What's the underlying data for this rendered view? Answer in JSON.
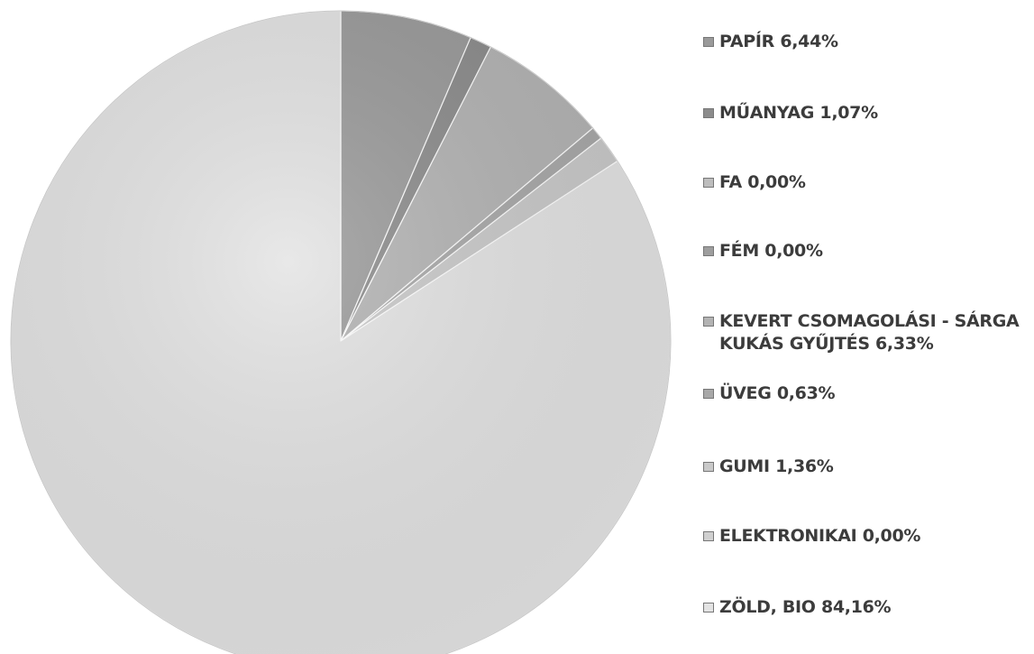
{
  "chart_data": {
    "type": "pie",
    "title": "",
    "start_angle_deg": 0,
    "direction": "clockwise",
    "legend_position": "right",
    "slices": [
      {
        "label": "PAPÍR 6,44%",
        "value": 6.44,
        "color": "#9a9a9a"
      },
      {
        "label": "MŰANYAG 1,07%",
        "value": 1.07,
        "color": "#8c8c8c"
      },
      {
        "label": "FA 0,00%",
        "value": 0.0,
        "color": "#bdbdbd"
      },
      {
        "label": "FÉM 0,00%",
        "value": 0.0,
        "color": "#9e9e9e"
      },
      {
        "label": "KEVERT CSOMAGOLÁSI - SÁRGA\nKUKÁS GYŰJTÉS 6,33%",
        "value": 6.33,
        "color": "#b3b3b3"
      },
      {
        "label": "ÜVEG 0,63%",
        "value": 0.63,
        "color": "#a8a8a8"
      },
      {
        "label": "GUMI 1,36%",
        "value": 1.36,
        "color": "#c9c9c9"
      },
      {
        "label": "ELEKTRONIKAI 0,00%",
        "value": 0.0,
        "color": "#d0d0d0"
      },
      {
        "label": "ZÖLD, BIO 84,16%",
        "value": 84.16,
        "color": "#e3e3e3"
      }
    ]
  }
}
